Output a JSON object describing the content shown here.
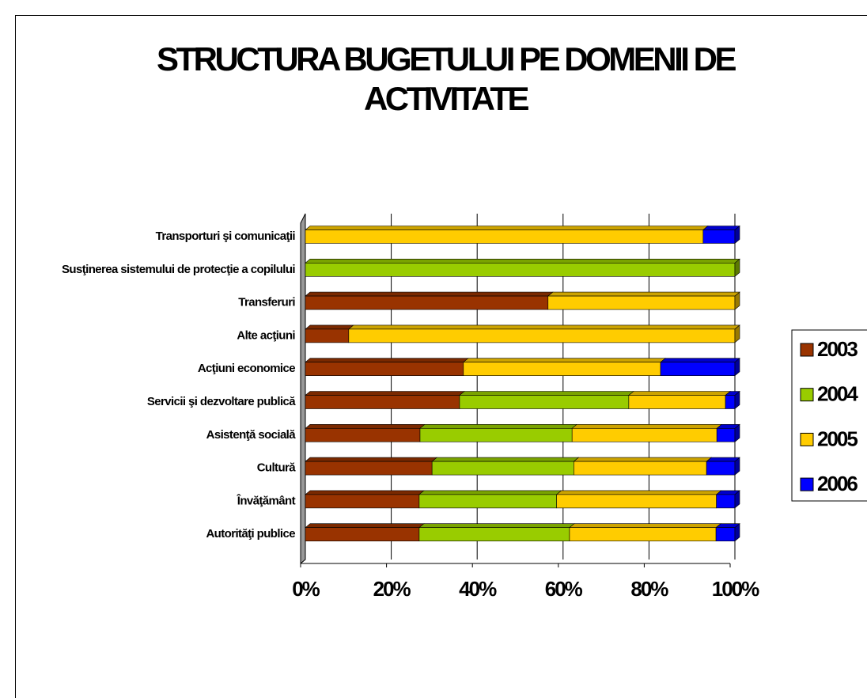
{
  "chart_data": {
    "type": "stacked_barh",
    "title": "STRUCTURA BUGETULUI PE DOMENII DE ACTIVITATE",
    "categories": [
      "Transporturi şi comunicaţii",
      "Susţinerea sistemului de protecţie a copilului",
      "Transferuri",
      "Alte acţiuni",
      "Acţiuni economice",
      "Servicii şi dezvoltare publică",
      "Asistenţă socială",
      "Cultură",
      "Învăţământ",
      "Autorităţi publice"
    ],
    "series": [
      {
        "name": "2003",
        "color": "#993300",
        "values": [
          0,
          0,
          56.5,
          10.1,
          36.8,
          35.9,
          26.7,
          29.5,
          26.5,
          26.5
        ]
      },
      {
        "name": "2004",
        "color": "#99cc00",
        "values": [
          0,
          100,
          0,
          0,
          0,
          39.4,
          35.4,
          33.0,
          32.0,
          35.0
        ]
      },
      {
        "name": "2005",
        "color": "#ffcc00",
        "values": [
          92.6,
          0,
          43.5,
          89.9,
          45.9,
          22.5,
          33.7,
          30.9,
          37.2,
          34.1
        ]
      },
      {
        "name": "2006",
        "color": "#0000ff",
        "values": [
          7.4,
          0,
          0,
          0,
          17.3,
          2.2,
          4.2,
          6.6,
          4.3,
          4.4
        ]
      }
    ],
    "xlim": [
      0,
      100
    ],
    "xticks": [
      {
        "value": 0,
        "label": "0%"
      },
      {
        "value": 20,
        "label": "20%"
      },
      {
        "value": 40,
        "label": "40%"
      },
      {
        "value": 60,
        "label": "60%"
      },
      {
        "value": 80,
        "label": "80%"
      },
      {
        "value": 100,
        "label": "100%"
      }
    ],
    "grid": true,
    "legend": "right"
  }
}
